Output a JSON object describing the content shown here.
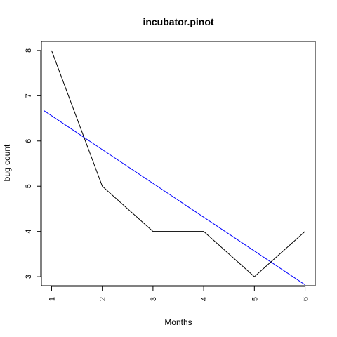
{
  "chart_data": {
    "type": "line",
    "title": "incubator.pinot",
    "xlabel": "Months",
    "ylabel": "bug count",
    "x": [
      1,
      2,
      3,
      4,
      5,
      6
    ],
    "series": [
      {
        "values": [
          8,
          5,
          4,
          4,
          3,
          4
        ],
        "color": "#000000"
      }
    ],
    "trend_line": {
      "from": [
        0.85,
        6.67
      ],
      "to": [
        6.0,
        2.82
      ],
      "color": "#0000ff"
    },
    "xlim": [
      0.8,
      6.2
    ],
    "ylim": [
      2.8,
      8.2
    ],
    "xticks": [
      "1",
      "2",
      "3",
      "4",
      "5",
      "6"
    ],
    "yticks": [
      "3",
      "4",
      "5",
      "6",
      "7",
      "8"
    ],
    "grid": false,
    "legend": "none"
  }
}
